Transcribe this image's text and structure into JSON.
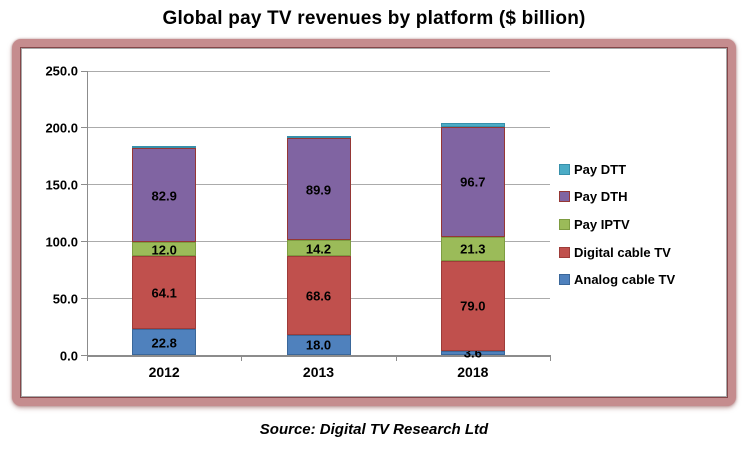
{
  "title": "Global pay TV revenues by platform ($ billion)",
  "source": "Source: Digital TV Research Ltd",
  "chart_data": {
    "type": "bar",
    "subtype": "stacked-column",
    "title": "Global pay TV revenues by platform ($ billion)",
    "categories": [
      "2012",
      "2013",
      "2018"
    ],
    "series": [
      {
        "name": "Analog cable TV",
        "color": "#4F81BD",
        "border_color": "#3A679A",
        "values": [
          22.8,
          18.0,
          3.6
        ],
        "show_labels": true
      },
      {
        "name": "Digital cable TV",
        "color": "#C0504D",
        "border_color": "#9E3C39",
        "values": [
          64.1,
          68.6,
          79.0
        ],
        "show_labels": true
      },
      {
        "name": "Pay IPTV",
        "color": "#9BBB59",
        "border_color": "#7E9C41",
        "values": [
          12.0,
          14.2,
          21.3
        ],
        "show_labels": true
      },
      {
        "name": "Pay DTH",
        "color": "#8064A2",
        "border_color": "#953735",
        "values": [
          82.9,
          89.9,
          96.7
        ],
        "show_labels": true
      },
      {
        "name": "Pay DTT",
        "color": "#4BACC6",
        "border_color": "#3790AB",
        "values": [
          1.8,
          2.0,
          3.0
        ],
        "show_labels": false
      }
    ],
    "y_axis": {
      "min": 0,
      "max": 250,
      "step": 50,
      "tick_labels": [
        "0.0",
        "50.0",
        "100.0",
        "150.0",
        "200.0",
        "250.0"
      ]
    },
    "x_axis": {
      "tick_labels": [
        "2012",
        "2013",
        "2018"
      ]
    },
    "legend": {
      "position": "right",
      "entries": [
        "Pay DTT",
        "Pay DTH",
        "Pay IPTV",
        "Digital cable TV",
        "Analog cable TV"
      ]
    },
    "grid": true,
    "gridline_color": "#ABABAB",
    "axis_color": "#8C8C8C",
    "data_label_color": "#000000",
    "frame_color": "#C58C8E",
    "plot_background": "#FFFFFF"
  }
}
